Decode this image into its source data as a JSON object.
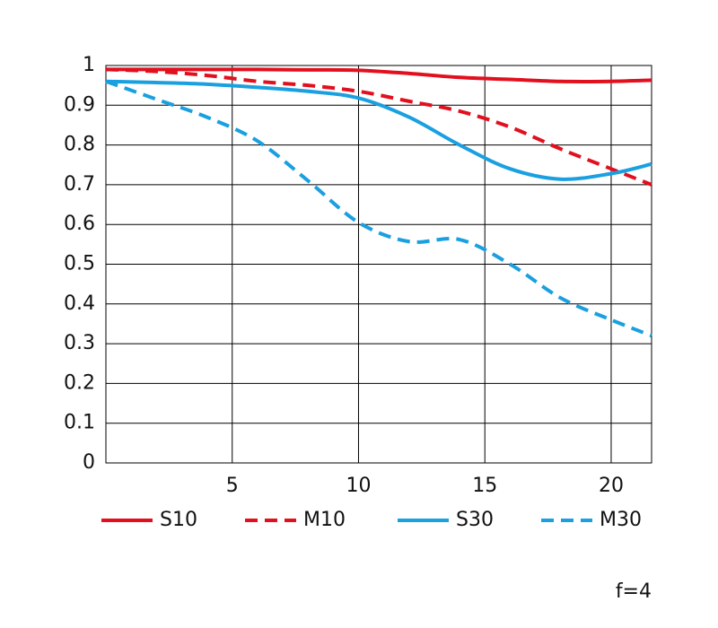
{
  "chart_data": {
    "type": "line",
    "x": [
      0,
      2,
      4,
      6,
      8,
      10,
      12,
      14,
      16,
      18,
      20,
      21.6
    ],
    "series": [
      {
        "name": "S10",
        "color": "#e2101e",
        "dash": false,
        "values": [
          0.99,
          0.99,
          0.99,
          0.99,
          0.989,
          0.988,
          0.98,
          0.97,
          0.965,
          0.96,
          0.96,
          0.963
        ]
      },
      {
        "name": "M10",
        "color": "#e2101e",
        "dash": true,
        "values": [
          0.99,
          0.985,
          0.975,
          0.96,
          0.95,
          0.935,
          0.91,
          0.885,
          0.845,
          0.79,
          0.74,
          0.7
        ]
      },
      {
        "name": "S30",
        "color": "#1aa0e0",
        "dash": false,
        "values": [
          0.96,
          0.957,
          0.953,
          0.945,
          0.935,
          0.918,
          0.87,
          0.8,
          0.74,
          0.714,
          0.728,
          0.752
        ]
      },
      {
        "name": "M30",
        "color": "#1aa0e0",
        "dash": true,
        "values": [
          0.96,
          0.915,
          0.87,
          0.81,
          0.71,
          0.605,
          0.557,
          0.562,
          0.5,
          0.415,
          0.36,
          0.32
        ]
      }
    ],
    "xlim": [
      0,
      21.6
    ],
    "ylim": [
      0,
      1
    ],
    "xticks": [
      5,
      10,
      15,
      20
    ],
    "yticks": [
      0,
      0.1,
      0.2,
      0.3,
      0.4,
      0.5,
      0.6,
      0.7,
      0.8,
      0.9,
      1
    ],
    "grid": true,
    "legend": "bottom",
    "annotation": "f=4"
  }
}
